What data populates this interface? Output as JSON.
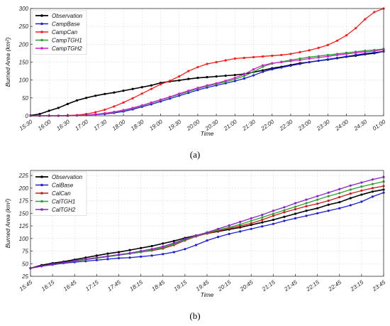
{
  "chart_data": [
    {
      "type": "line",
      "caption": "(a)",
      "xlabel": "Time",
      "ylabel": "Burned Area (km²)",
      "x_ticks": [
        "15:30",
        "16:00",
        "16:30",
        "17:00",
        "17:30",
        "18:00",
        "18:30",
        "19:00",
        "19:30",
        "20:00",
        "20:30",
        "21:00",
        "21:30",
        "22:00",
        "22:30",
        "23:00",
        "23:30",
        "24:00",
        "24:30",
        "01:00"
      ],
      "y_ticks": [
        "0",
        "50",
        "100",
        "150",
        "200",
        "250",
        "300"
      ],
      "ylim": [
        0,
        300
      ],
      "grid": true,
      "legend_position": "top-left",
      "x": [
        0,
        0.5,
        1,
        1.5,
        2,
        2.5,
        3,
        3.5,
        4,
        4.5,
        5,
        5.5,
        6,
        6.5,
        7,
        7.5,
        8,
        8.5,
        9,
        9.5,
        10,
        10.5,
        11,
        11.5,
        12,
        12.5,
        13,
        13.5,
        14,
        14.5,
        15,
        15.5,
        16,
        16.5,
        17,
        17.5,
        18,
        18.5,
        19
      ],
      "series": [
        {
          "name": "Observation",
          "color": "#000000",
          "values": [
            1,
            5,
            14,
            22,
            33,
            43,
            50,
            56,
            61,
            65,
            70,
            75,
            80,
            85,
            92,
            96,
            99,
            103,
            106,
            108,
            110,
            112,
            114,
            117,
            122,
            127,
            133,
            137,
            142,
            147,
            150,
            154,
            157,
            161,
            165,
            168,
            172,
            175,
            180
          ]
        },
        {
          "name": "CampBase",
          "color": "#1f1fd6",
          "values": [
            0,
            0,
            0,
            0,
            0,
            1,
            2,
            3,
            5,
            8,
            12,
            18,
            25,
            32,
            40,
            48,
            56,
            64,
            72,
            79,
            85,
            91,
            97,
            104,
            113,
            123,
            130,
            135,
            140,
            145,
            150,
            154,
            158,
            162,
            166,
            170,
            174,
            177,
            180
          ]
        },
        {
          "name": "CampCan",
          "color": "#ff1a1a",
          "values": [
            0,
            0,
            0,
            0,
            1,
            2,
            5,
            10,
            17,
            26,
            37,
            49,
            62,
            75,
            88,
            98,
            110,
            125,
            136,
            145,
            150,
            155,
            160,
            162,
            164,
            166,
            168,
            170,
            173,
            178,
            183,
            190,
            198,
            210,
            225,
            245,
            270,
            290,
            300
          ]
        },
        {
          "name": "CampTGH1",
          "color": "#2ea02e",
          "values": [
            0,
            0,
            0,
            0,
            0,
            1,
            2,
            4,
            7,
            10,
            15,
            21,
            28,
            36,
            44,
            52,
            60,
            68,
            76,
            83,
            89,
            95,
            102,
            111,
            123,
            137,
            146,
            151,
            156,
            160,
            164,
            167,
            170,
            173,
            176,
            179,
            182,
            184,
            187
          ]
        },
        {
          "name": "CampTGH2",
          "color": "#cc22cc",
          "values": [
            0,
            0,
            0,
            0,
            0,
            1,
            2,
            4,
            7,
            11,
            16,
            22,
            29,
            37,
            45,
            53,
            62,
            70,
            78,
            85,
            91,
            98,
            106,
            116,
            130,
            141,
            147,
            150,
            153,
            156,
            160,
            163,
            166,
            170,
            173,
            176,
            179,
            181,
            185
          ]
        }
      ]
    },
    {
      "type": "line",
      "caption": "(b)",
      "xlabel": "Time",
      "ylabel": "Burned Area (km²)",
      "x_ticks": [
        "15:45",
        "16:15",
        "16:45",
        "17:15",
        "17:45",
        "18:15",
        "18:45",
        "19:15",
        "19:45",
        "20:15",
        "20:45",
        "21:15",
        "21:45",
        "22:15",
        "22:45",
        "23:15",
        "23:45"
      ],
      "y_ticks": [
        "25",
        "50",
        "75",
        "100",
        "125",
        "150",
        "175",
        "200",
        "225"
      ],
      "ylim": [
        25,
        235
      ],
      "grid": true,
      "legend_position": "top-left",
      "x": [
        0,
        0.5,
        1,
        1.5,
        2,
        2.5,
        3,
        3.5,
        4,
        4.5,
        5,
        5.5,
        6,
        6.5,
        7,
        7.5,
        8,
        8.5,
        9,
        9.5,
        10,
        10.5,
        11,
        11.5,
        12,
        12.5,
        13,
        13.5,
        14,
        14.5,
        15,
        15.5,
        16
      ],
      "series": [
        {
          "name": "Observation",
          "color": "#000000",
          "values": [
            41,
            47,
            51,
            54,
            58,
            62,
            66,
            70,
            73,
            77,
            81,
            85,
            90,
            95,
            101,
            106,
            110,
            114,
            118,
            122,
            127,
            132,
            137,
            143,
            149,
            155,
            160,
            167,
            172,
            180,
            187,
            193,
            197
          ]
        },
        {
          "name": "CalBase",
          "color": "#1f1fd6",
          "values": [
            41,
            45,
            48,
            51,
            53,
            55,
            57,
            59,
            61,
            62,
            64,
            66,
            69,
            73,
            79,
            87,
            96,
            103,
            109,
            114,
            119,
            124,
            129,
            135,
            140,
            145,
            150,
            155,
            160,
            166,
            173,
            183,
            191
          ]
        },
        {
          "name": "CalCan",
          "color": "#cc1a1a",
          "values": [
            41,
            45,
            49,
            52,
            55,
            58,
            61,
            64,
            67,
            70,
            73,
            76,
            80,
            87,
            96,
            104,
            110,
            115,
            120,
            125,
            130,
            137,
            145,
            152,
            158,
            164,
            169,
            175,
            182,
            189,
            195,
            200,
            204
          ]
        },
        {
          "name": "CalTGH1",
          "color": "#2ea02e",
          "values": [
            41,
            45,
            49,
            52,
            55,
            58,
            61,
            64,
            67,
            70,
            73,
            77,
            82,
            89,
            97,
            105,
            111,
            117,
            122,
            128,
            135,
            142,
            149,
            156,
            163,
            170,
            177,
            184,
            190,
            197,
            203,
            208,
            213
          ]
        },
        {
          "name": "CalTGH2",
          "color": "#8a22cc",
          "values": [
            41,
            45,
            49,
            52,
            56,
            59,
            62,
            65,
            68,
            71,
            75,
            79,
            84,
            91,
            99,
            106,
            112,
            119,
            126,
            133,
            140,
            147,
            155,
            162,
            170,
            177,
            184,
            191,
            198,
            205,
            211,
            217,
            222
          ]
        }
      ]
    }
  ]
}
